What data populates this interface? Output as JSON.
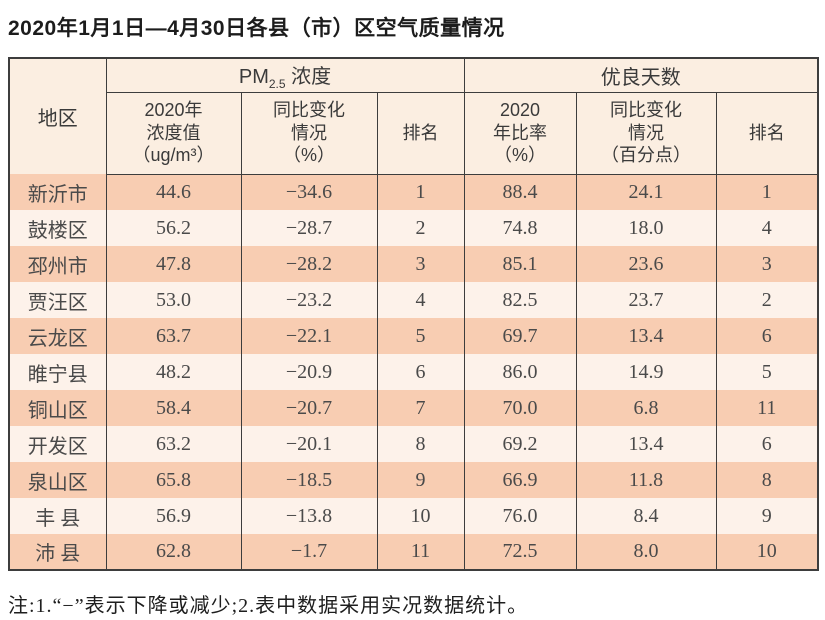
{
  "page": {
    "title": "2020年1月1日—4月30日各县（市）区空气质量情况",
    "note": "注:1.“−”表示下降或减少;2.表中数据采用实况数据统计。"
  },
  "colors": {
    "row_stripe_dark": "#f8cdb2",
    "row_stripe_light": "#fdf2ea",
    "header_background": "#fbeee1",
    "table_border": "#3d3d3d"
  },
  "table": {
    "region_header": "地区",
    "pm_group": {
      "prefix": "PM",
      "sub": "2.5",
      "suffix": " 浓度"
    },
    "good_days_group": "优良天数",
    "sub_headers": {
      "pm_value": "2020年\n浓度值\n（ug/m³）",
      "pm_change": "同比变化\n情况\n（%）",
      "pm_rank": "排名",
      "good_rate": "2020\n年比率\n（%）",
      "good_change": "同比变化\n情况\n（百分点）",
      "good_rank": "排名"
    },
    "rows": [
      {
        "region": "新沂市",
        "pm_value": "44.6",
        "pm_change": "−34.6",
        "pm_rank": "1",
        "good_rate": "88.4",
        "good_change": "24.1",
        "good_rank": "1"
      },
      {
        "region": "鼓楼区",
        "pm_value": "56.2",
        "pm_change": "−28.7",
        "pm_rank": "2",
        "good_rate": "74.8",
        "good_change": "18.0",
        "good_rank": "4"
      },
      {
        "region": "邳州市",
        "pm_value": "47.8",
        "pm_change": "−28.2",
        "pm_rank": "3",
        "good_rate": "85.1",
        "good_change": "23.6",
        "good_rank": "3"
      },
      {
        "region": "贾汪区",
        "pm_value": "53.0",
        "pm_change": "−23.2",
        "pm_rank": "4",
        "good_rate": "82.5",
        "good_change": "23.7",
        "good_rank": "2"
      },
      {
        "region": "云龙区",
        "pm_value": "63.7",
        "pm_change": "−22.1",
        "pm_rank": "5",
        "good_rate": "69.7",
        "good_change": "13.4",
        "good_rank": "6"
      },
      {
        "region": "睢宁县",
        "pm_value": "48.2",
        "pm_change": "−20.9",
        "pm_rank": "6",
        "good_rate": "86.0",
        "good_change": "14.9",
        "good_rank": "5"
      },
      {
        "region": "铜山区",
        "pm_value": "58.4",
        "pm_change": "−20.7",
        "pm_rank": "7",
        "good_rate": "70.0",
        "good_change": "6.8",
        "good_rank": "11"
      },
      {
        "region": "开发区",
        "pm_value": "63.2",
        "pm_change": "−20.1",
        "pm_rank": "8",
        "good_rate": "69.2",
        "good_change": "13.4",
        "good_rank": "6"
      },
      {
        "region": "泉山区",
        "pm_value": "65.8",
        "pm_change": "−18.5",
        "pm_rank": "9",
        "good_rate": "66.9",
        "good_change": "11.8",
        "good_rank": "8"
      },
      {
        "region": "丰 县",
        "pm_value": "56.9",
        "pm_change": "−13.8",
        "pm_rank": "10",
        "good_rate": "76.0",
        "good_change": "8.4",
        "good_rank": "9"
      },
      {
        "region": "沛 县",
        "pm_value": "62.8",
        "pm_change": "−1.7",
        "pm_rank": "11",
        "good_rate": "72.5",
        "good_change": "8.0",
        "good_rank": "10"
      }
    ]
  }
}
